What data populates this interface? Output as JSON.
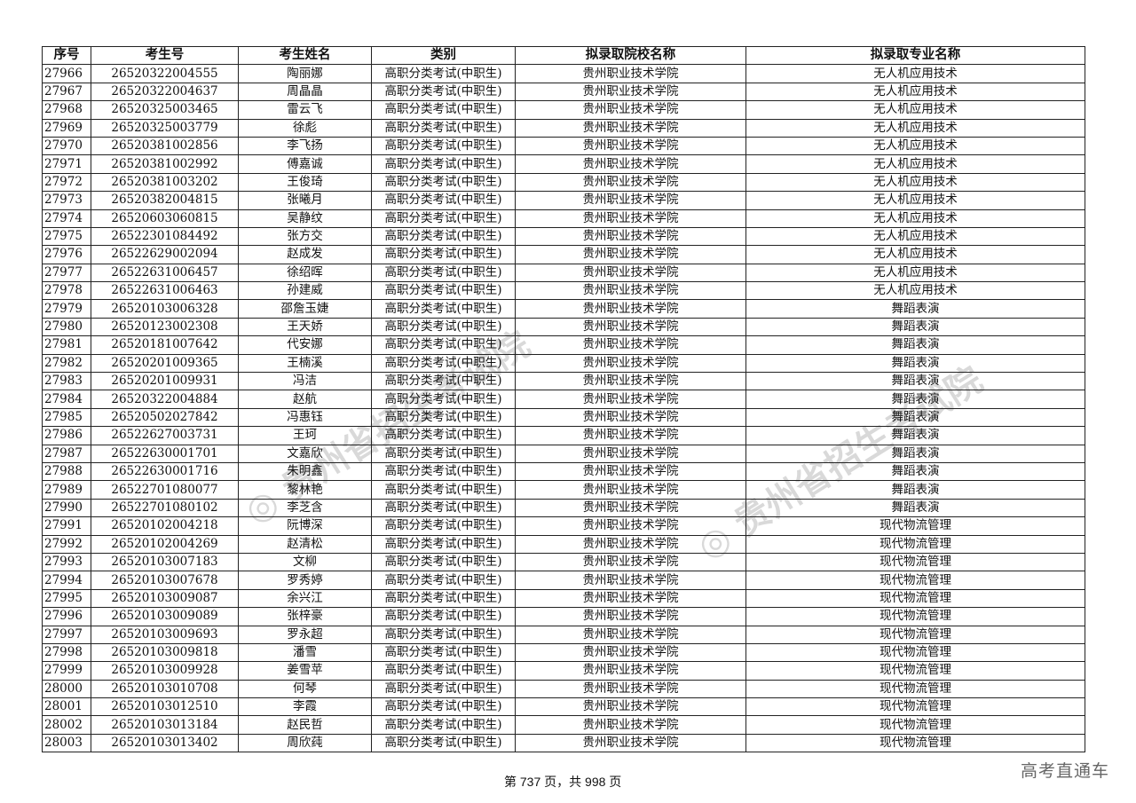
{
  "table": {
    "headers": [
      "序号",
      "考生号",
      "考生姓名",
      "类别",
      "拟录取院校名称",
      "拟录取专业名称"
    ],
    "rows": [
      [
        "27966",
        "26520322004555",
        "陶丽娜",
        "高职分类考试(中职生)",
        "贵州职业技术学院",
        "无人机应用技术"
      ],
      [
        "27967",
        "26520322004637",
        "周晶晶",
        "高职分类考试(中职生)",
        "贵州职业技术学院",
        "无人机应用技术"
      ],
      [
        "27968",
        "26520325003465",
        "雷云飞",
        "高职分类考试(中职生)",
        "贵州职业技术学院",
        "无人机应用技术"
      ],
      [
        "27969",
        "26520325003779",
        "徐彪",
        "高职分类考试(中职生)",
        "贵州职业技术学院",
        "无人机应用技术"
      ],
      [
        "27970",
        "26520381002856",
        "李飞扬",
        "高职分类考试(中职生)",
        "贵州职业技术学院",
        "无人机应用技术"
      ],
      [
        "27971",
        "26520381002992",
        "傅嘉诚",
        "高职分类考试(中职生)",
        "贵州职业技术学院",
        "无人机应用技术"
      ],
      [
        "27972",
        "26520381003202",
        "王俊琦",
        "高职分类考试(中职生)",
        "贵州职业技术学院",
        "无人机应用技术"
      ],
      [
        "27973",
        "26520382004815",
        "张曦月",
        "高职分类考试(中职生)",
        "贵州职业技术学院",
        "无人机应用技术"
      ],
      [
        "27974",
        "26520603060815",
        "吴静纹",
        "高职分类考试(中职生)",
        "贵州职业技术学院",
        "无人机应用技术"
      ],
      [
        "27975",
        "26522301084492",
        "张方交",
        "高职分类考试(中职生)",
        "贵州职业技术学院",
        "无人机应用技术"
      ],
      [
        "27976",
        "26522629002094",
        "赵成发",
        "高职分类考试(中职生)",
        "贵州职业技术学院",
        "无人机应用技术"
      ],
      [
        "27977",
        "26522631006457",
        "徐绍晖",
        "高职分类考试(中职生)",
        "贵州职业技术学院",
        "无人机应用技术"
      ],
      [
        "27978",
        "26522631006463",
        "孙建威",
        "高职分类考试(中职生)",
        "贵州职业技术学院",
        "无人机应用技术"
      ],
      [
        "27979",
        "26520103006328",
        "邵詹玉婕",
        "高职分类考试(中职生)",
        "贵州职业技术学院",
        "舞蹈表演"
      ],
      [
        "27980",
        "26520123002308",
        "王天娇",
        "高职分类考试(中职生)",
        "贵州职业技术学院",
        "舞蹈表演"
      ],
      [
        "27981",
        "26520181007642",
        "代安娜",
        "高职分类考试(中职生)",
        "贵州职业技术学院",
        "舞蹈表演"
      ],
      [
        "27982",
        "26520201009365",
        "王楠溪",
        "高职分类考试(中职生)",
        "贵州职业技术学院",
        "舞蹈表演"
      ],
      [
        "27983",
        "26520201009931",
        "冯洁",
        "高职分类考试(中职生)",
        "贵州职业技术学院",
        "舞蹈表演"
      ],
      [
        "27984",
        "26520322004884",
        "赵航",
        "高职分类考试(中职生)",
        "贵州职业技术学院",
        "舞蹈表演"
      ],
      [
        "27985",
        "26520502027842",
        "冯惠钰",
        "高职分类考试(中职生)",
        "贵州职业技术学院",
        "舞蹈表演"
      ],
      [
        "27986",
        "26522627003731",
        "王珂",
        "高职分类考试(中职生)",
        "贵州职业技术学院",
        "舞蹈表演"
      ],
      [
        "27987",
        "26522630001701",
        "文嘉欣",
        "高职分类考试(中职生)",
        "贵州职业技术学院",
        "舞蹈表演"
      ],
      [
        "27988",
        "26522630001716",
        "朱明鑫",
        "高职分类考试(中职生)",
        "贵州职业技术学院",
        "舞蹈表演"
      ],
      [
        "27989",
        "26522701080077",
        "黎林艳",
        "高职分类考试(中职生)",
        "贵州职业技术学院",
        "舞蹈表演"
      ],
      [
        "27990",
        "26522701080102",
        "李芝含",
        "高职分类考试(中职生)",
        "贵州职业技术学院",
        "舞蹈表演"
      ],
      [
        "27991",
        "26520102004218",
        "阮博深",
        "高职分类考试(中职生)",
        "贵州职业技术学院",
        "现代物流管理"
      ],
      [
        "27992",
        "26520102004269",
        "赵清松",
        "高职分类考试(中职生)",
        "贵州职业技术学院",
        "现代物流管理"
      ],
      [
        "27993",
        "26520103007183",
        "文柳",
        "高职分类考试(中职生)",
        "贵州职业技术学院",
        "现代物流管理"
      ],
      [
        "27994",
        "26520103007678",
        "罗秀婷",
        "高职分类考试(中职生)",
        "贵州职业技术学院",
        "现代物流管理"
      ],
      [
        "27995",
        "26520103009087",
        "余兴江",
        "高职分类考试(中职生)",
        "贵州职业技术学院",
        "现代物流管理"
      ],
      [
        "27996",
        "26520103009089",
        "张梓豪",
        "高职分类考试(中职生)",
        "贵州职业技术学院",
        "现代物流管理"
      ],
      [
        "27997",
        "26520103009693",
        "罗永超",
        "高职分类考试(中职生)",
        "贵州职业技术学院",
        "现代物流管理"
      ],
      [
        "27998",
        "26520103009818",
        "潘雪",
        "高职分类考试(中职生)",
        "贵州职业技术学院",
        "现代物流管理"
      ],
      [
        "27999",
        "26520103009928",
        "姜雪苹",
        "高职分类考试(中职生)",
        "贵州职业技术学院",
        "现代物流管理"
      ],
      [
        "28000",
        "26520103010708",
        "何琴",
        "高职分类考试(中职生)",
        "贵州职业技术学院",
        "现代物流管理"
      ],
      [
        "28001",
        "26520103012510",
        "李霞",
        "高职分类考试(中职生)",
        "贵州职业技术学院",
        "现代物流管理"
      ],
      [
        "28002",
        "26520103013184",
        "赵民哲",
        "高职分类考试(中职生)",
        "贵州职业技术学院",
        "现代物流管理"
      ],
      [
        "28003",
        "26520103013402",
        "周欣莼",
        "高职分类考试(中职生)",
        "贵州职业技术学院",
        "现代物流管理"
      ]
    ]
  },
  "footer": {
    "page_text": "第 737 页，共 998 页"
  },
  "brand": "高考直通车",
  "watermark": "贵州省招生考试院"
}
